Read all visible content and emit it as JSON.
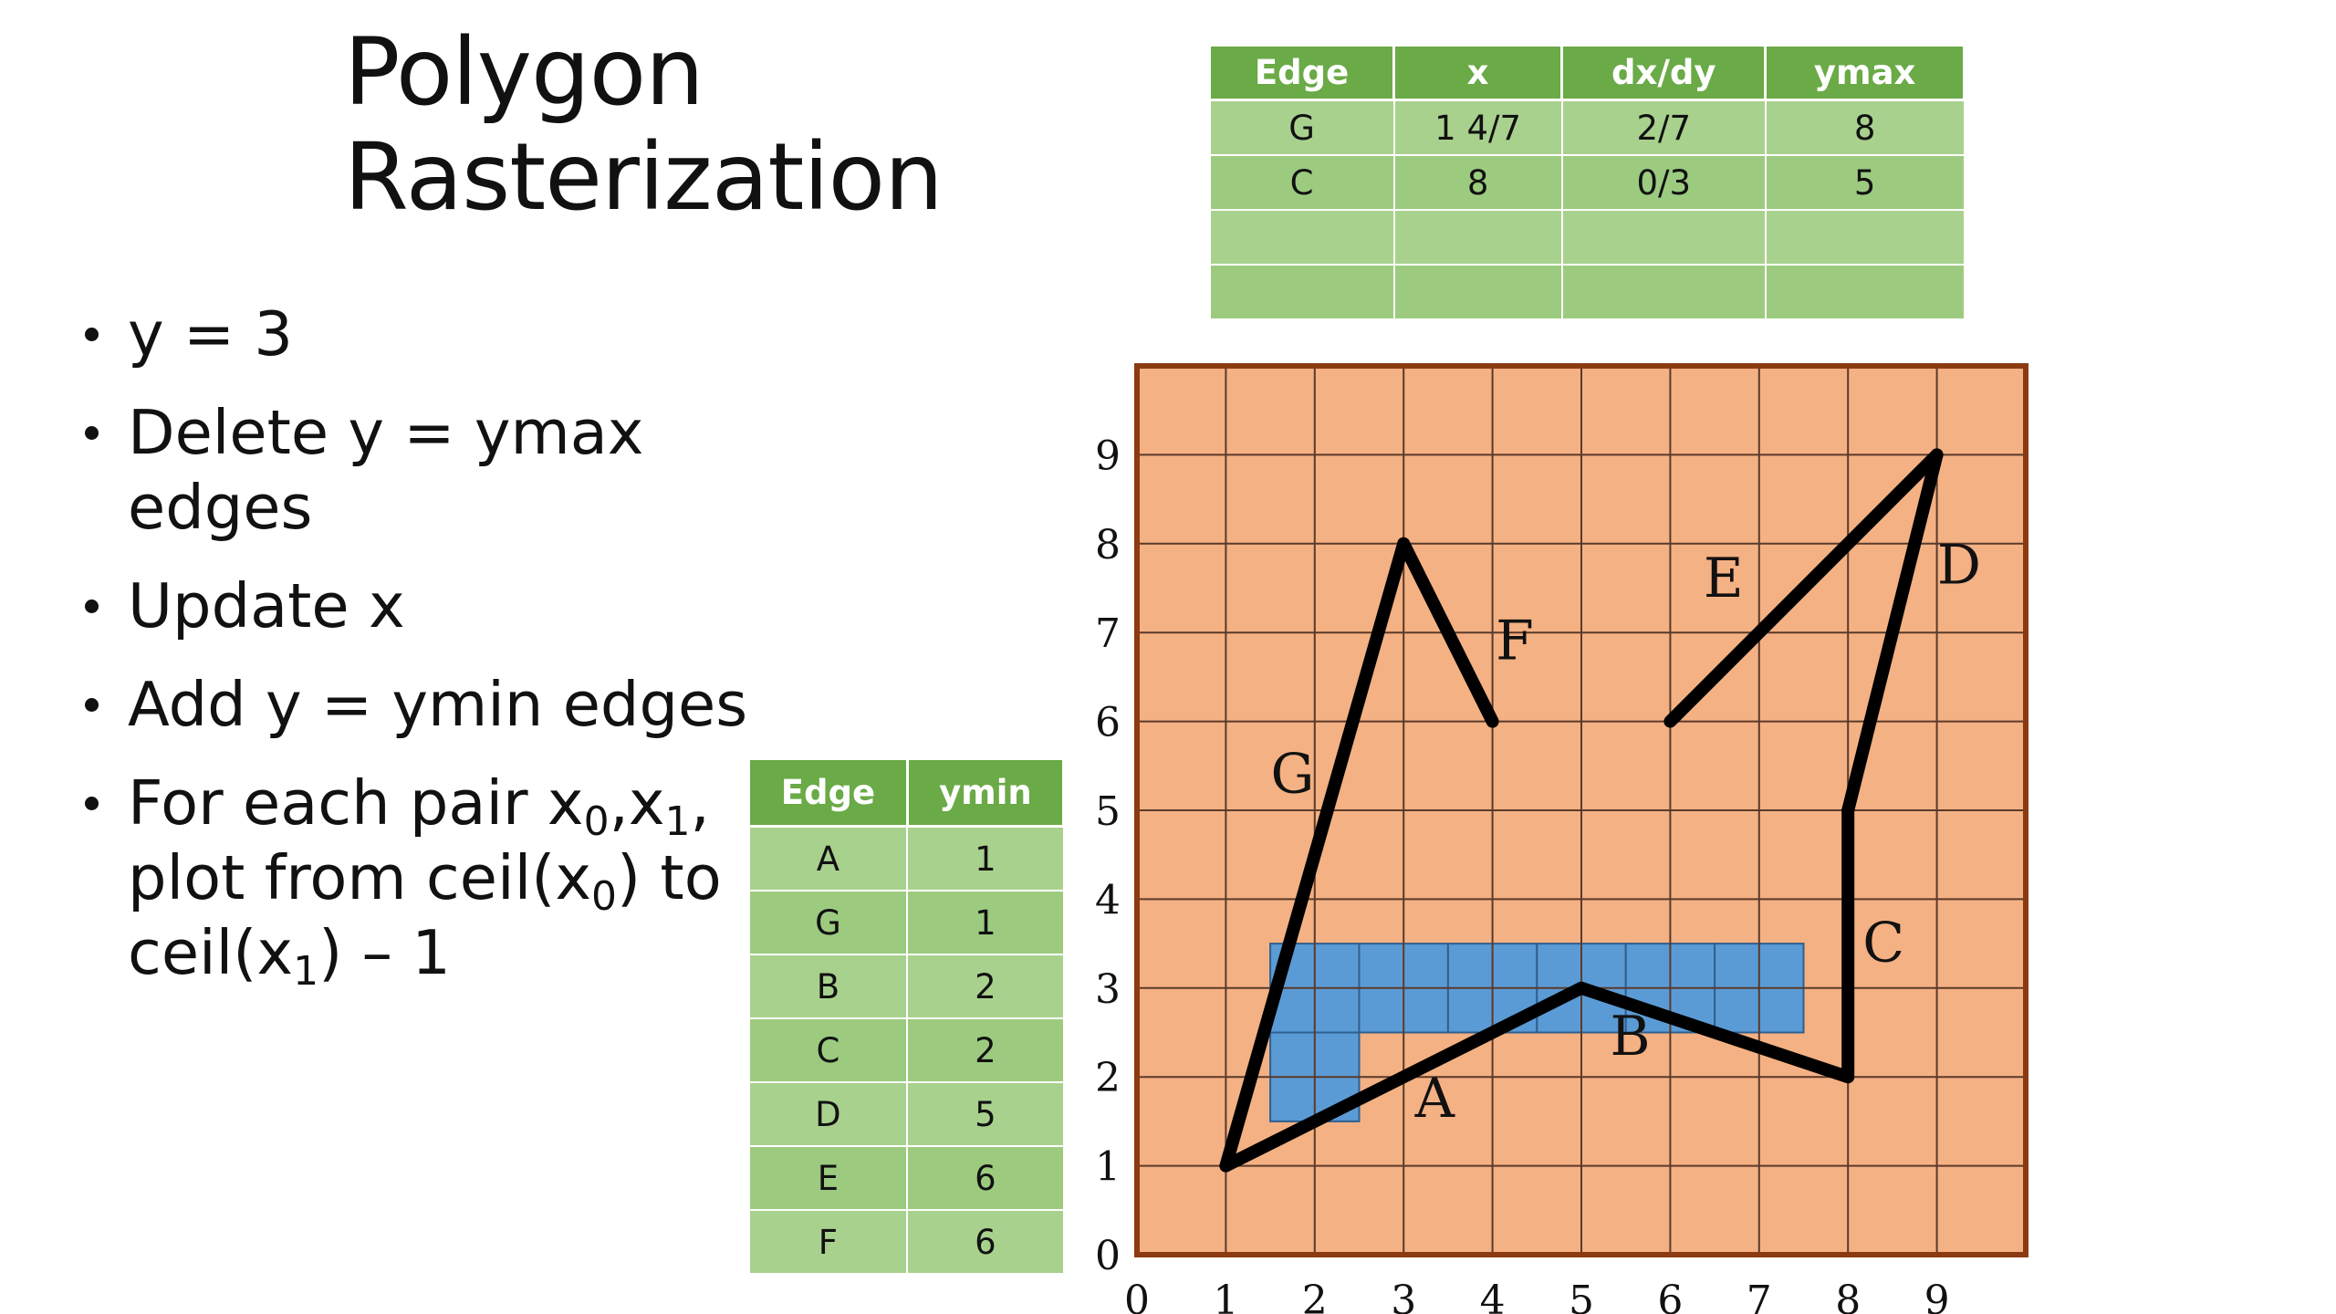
{
  "title": {
    "line1": "Polygon",
    "line2": "Rasterization"
  },
  "bullets": [
    {
      "text": "y = 3"
    },
    {
      "text": "Delete y = ymax edges"
    },
    {
      "text": "Update x"
    },
    {
      "text": "Add y = ymin edges"
    },
    {
      "p1": "For each pair x",
      "s1": "0",
      "p2": ",x",
      "s2": "1",
      "p3": ", plot from ceil(x",
      "s3": "0",
      "p4": ") to ceil(x",
      "s4": "1",
      "p5": ") – 1"
    }
  ],
  "active_edge_table": {
    "headers": [
      "Edge",
      "x",
      "dx/dy",
      "ymax"
    ],
    "rows": [
      [
        "G",
        "1 4/7",
        "2/7",
        "8"
      ],
      [
        "C",
        "8",
        "0/3",
        "5"
      ],
      [
        "",
        "",
        "",
        ""
      ],
      [
        "",
        "",
        "",
        ""
      ]
    ]
  },
  "edge_table": {
    "headers": [
      "Edge",
      "ymin"
    ],
    "rows": [
      [
        "A",
        "1"
      ],
      [
        "G",
        "1"
      ],
      [
        "B",
        "2"
      ],
      [
        "C",
        "2"
      ],
      [
        "D",
        "5"
      ],
      [
        "E",
        "6"
      ],
      [
        "F",
        "6"
      ]
    ]
  },
  "grid": {
    "x_ticks": [
      "0",
      "1",
      "2",
      "3",
      "4",
      "5",
      "6",
      "7",
      "8",
      "9"
    ],
    "y_ticks": [
      "0",
      "1",
      "2",
      "3",
      "4",
      "5",
      "6",
      "7",
      "8",
      "9"
    ],
    "colors": {
      "background": "#f4b183",
      "frame": "#8b3a12",
      "line": "#5a3a2a",
      "fill": "#5b9bd5",
      "polygon": "#000000"
    },
    "edges": [
      {
        "name": "A",
        "from": [
          1,
          1
        ],
        "to": [
          5,
          3
        ]
      },
      {
        "name": "B",
        "from": [
          5,
          3
        ],
        "to": [
          8,
          2
        ]
      },
      {
        "name": "C",
        "from": [
          8,
          2
        ],
        "to": [
          8,
          5
        ]
      },
      {
        "name": "D",
        "from": [
          8,
          5
        ],
        "to": [
          9,
          9
        ]
      },
      {
        "name": "E",
        "from": [
          9,
          9
        ],
        "to": [
          6,
          6
        ]
      },
      {
        "name": "F",
        "from": [
          4,
          6
        ],
        "to": [
          3,
          8
        ]
      },
      {
        "name": "G",
        "from": [
          3,
          8
        ],
        "to": [
          1,
          1
        ]
      }
    ],
    "edge_labels": [
      {
        "name": "A",
        "text": "A",
        "at": [
          3.35,
          1.55
        ]
      },
      {
        "name": "B",
        "text": "B",
        "at": [
          5.55,
          2.25
        ]
      },
      {
        "name": "C",
        "text": "C",
        "at": [
          8.4,
          3.3
        ]
      },
      {
        "name": "D",
        "text": "D",
        "at": [
          9.25,
          7.55
        ]
      },
      {
        "name": "E",
        "text": "E",
        "at": [
          6.6,
          7.4
        ]
      },
      {
        "name": "F",
        "text": "F",
        "at": [
          4.25,
          6.7
        ]
      },
      {
        "name": "G",
        "text": "G",
        "at": [
          1.75,
          5.2
        ]
      }
    ],
    "filled_pixels": [
      {
        "x0": 1.5,
        "x1": 7.5,
        "y0": 2.5,
        "y1": 3.5
      },
      {
        "x0": 1.5,
        "x1": 2.5,
        "y0": 1.5,
        "y1": 2.5
      }
    ]
  }
}
